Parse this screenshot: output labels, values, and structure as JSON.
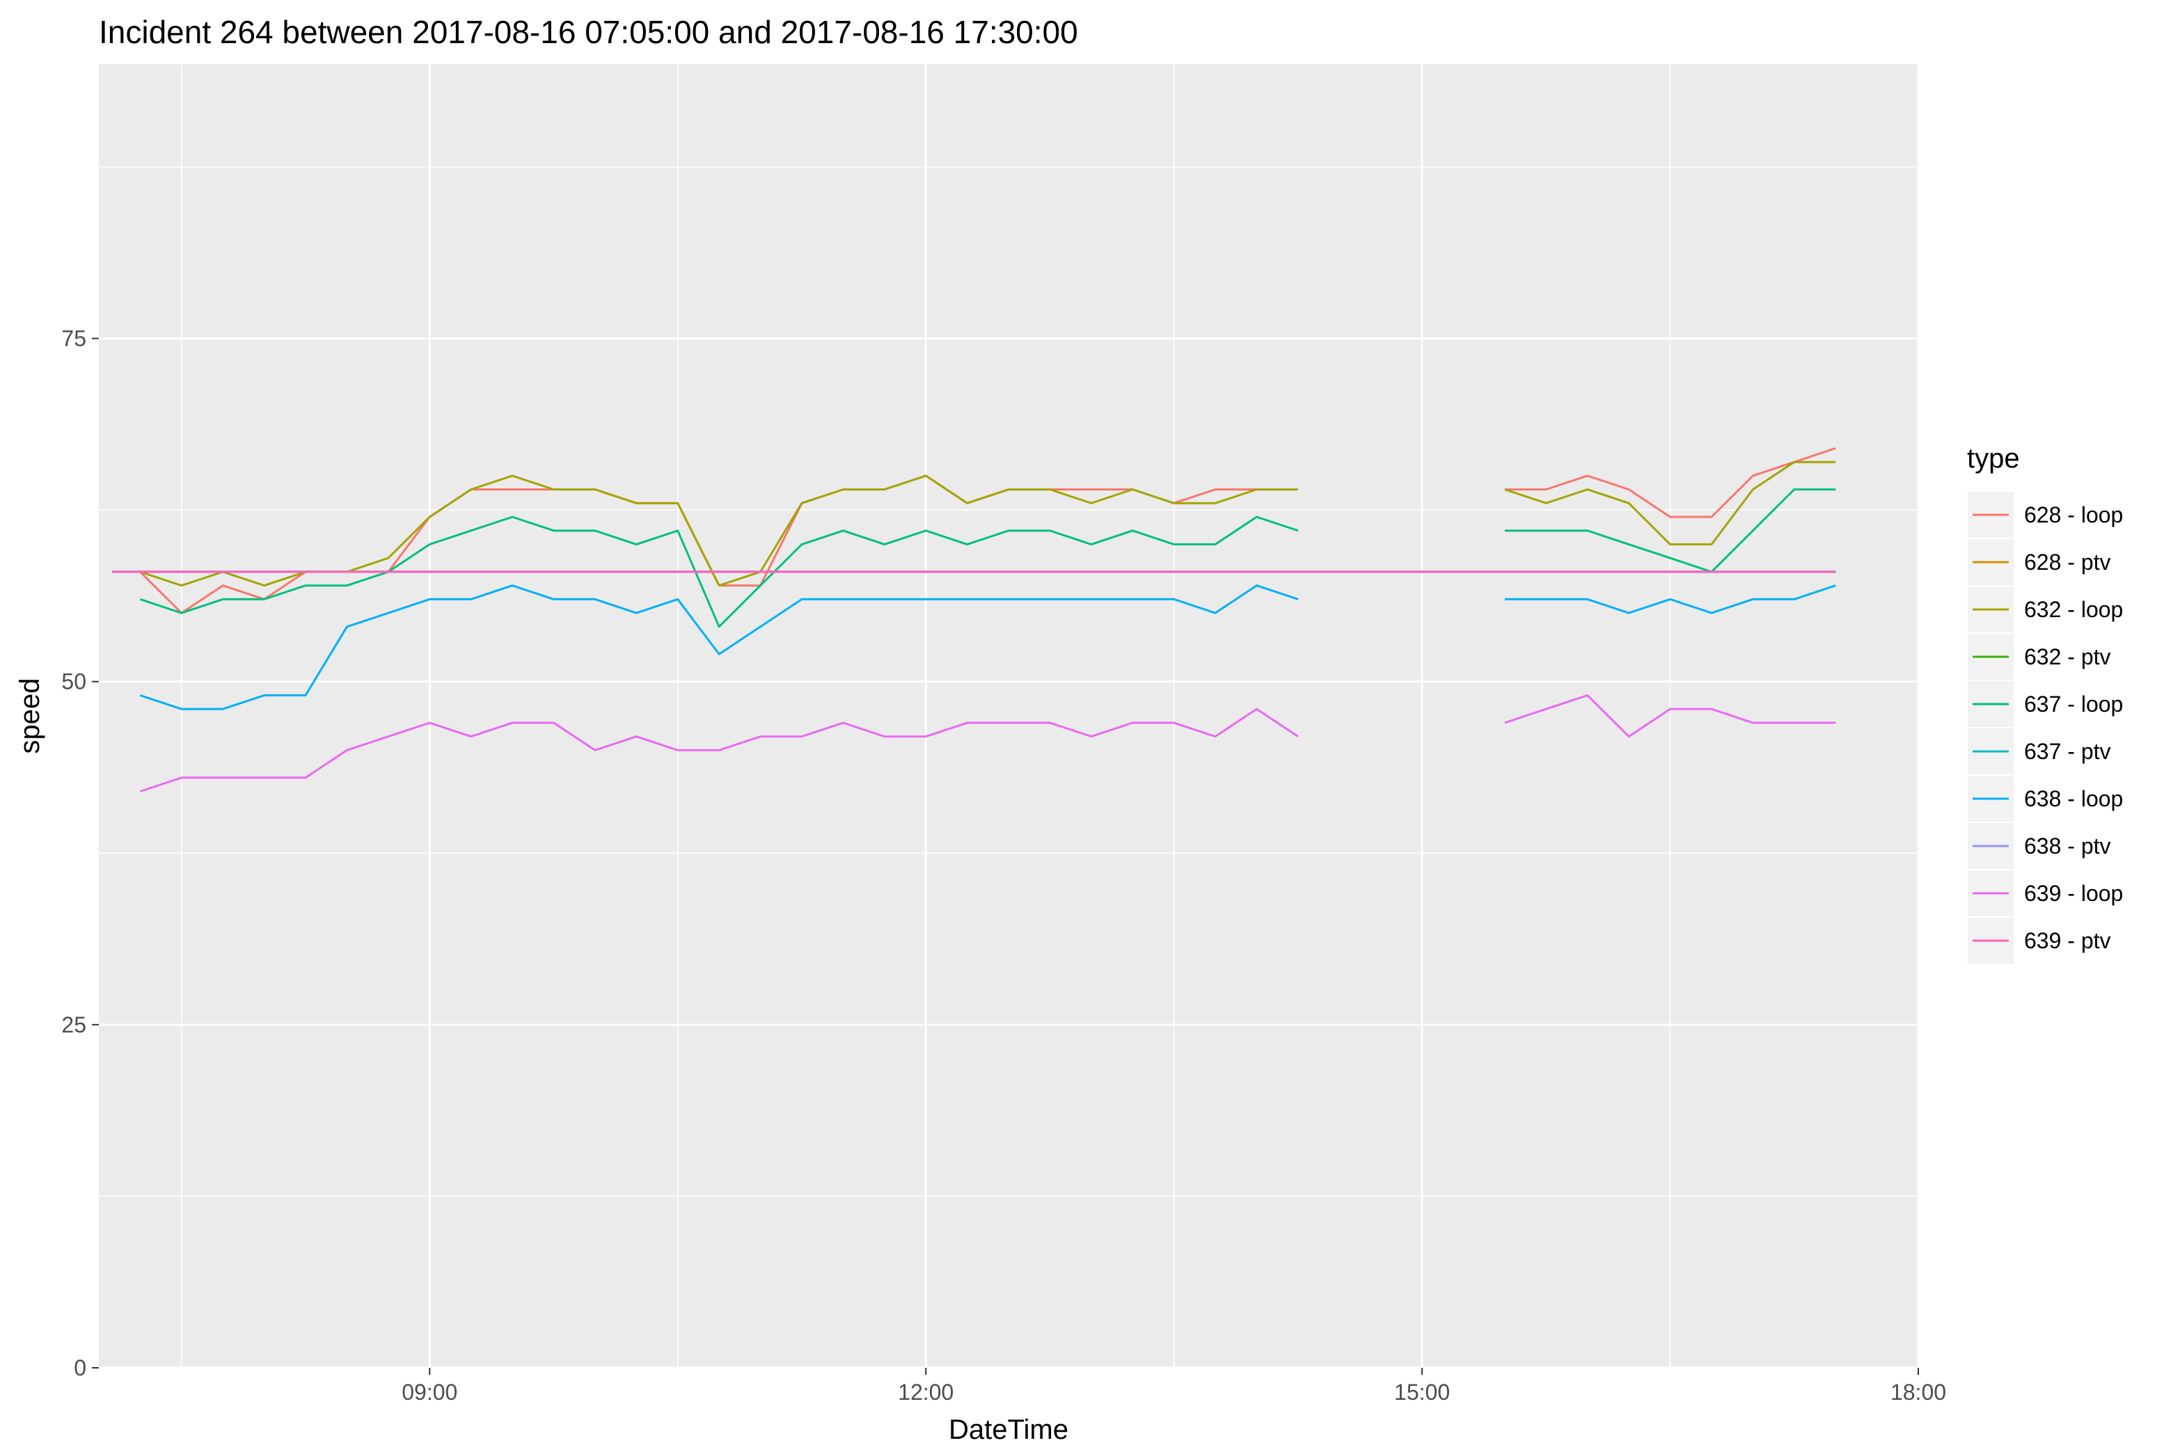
{
  "chart_data": {
    "type": "line",
    "title": "Incident 264 between 2017-08-16 07:05:00 and 2017-08-16 17:30:00",
    "xlabel": "DateTime",
    "ylabel": "speed",
    "x_unit": "hours of day",
    "xlim": [
      7.0,
      18.0
    ],
    "ylim": [
      0,
      95
    ],
    "x_ticks": [
      9,
      12,
      15,
      18
    ],
    "x_tick_labels": [
      "09:00",
      "12:00",
      "15:00",
      "18:00"
    ],
    "y_ticks": [
      0,
      25,
      50,
      75
    ],
    "y_tick_labels": [
      "0",
      "25",
      "50",
      "75"
    ],
    "grid": true,
    "legend": {
      "title": "type",
      "placement": "right"
    },
    "series": [
      {
        "name": "628 - loop",
        "color": "#F8766D",
        "x": [
          7.25,
          7.5,
          7.75,
          8.0,
          8.25,
          8.5,
          8.75,
          9.0,
          9.25,
          9.5,
          9.75,
          10.0,
          10.25,
          10.5,
          10.75,
          11.0,
          11.25,
          11.5,
          11.75,
          12.0,
          12.25,
          12.5,
          12.75,
          13.0,
          13.25,
          13.5,
          13.75,
          14.0,
          14.25,
          null,
          15.5,
          15.75,
          16.0,
          16.25,
          16.5,
          16.75,
          17.0,
          17.25,
          17.5
        ],
        "y": [
          58,
          55,
          57,
          56,
          58,
          58,
          58,
          62,
          64,
          64,
          64,
          64,
          63,
          63,
          57,
          57,
          63,
          64,
          64,
          65,
          63,
          64,
          64,
          64,
          64,
          63,
          64,
          64,
          64,
          null,
          64,
          64,
          65,
          64,
          62,
          62,
          65,
          66,
          67
        ]
      },
      {
        "name": "628 - ptv",
        "color": "#D89000",
        "x": [
          7.08,
          17.5
        ],
        "y": [
          58,
          58
        ]
      },
      {
        "name": "632 - loop",
        "color": "#A3A500",
        "x": [
          7.25,
          7.5,
          7.75,
          8.0,
          8.25,
          8.5,
          8.75,
          9.0,
          9.25,
          9.5,
          9.75,
          10.0,
          10.25,
          10.5,
          10.75,
          11.0,
          11.25,
          11.5,
          11.75,
          12.0,
          12.25,
          12.5,
          12.75,
          13.0,
          13.25,
          13.5,
          13.75,
          14.0,
          14.25,
          null,
          15.5,
          15.75,
          16.0,
          16.25,
          16.5,
          16.75,
          17.0,
          17.25,
          17.5
        ],
        "y": [
          58,
          57,
          58,
          57,
          58,
          58,
          59,
          62,
          64,
          65,
          64,
          64,
          63,
          63,
          57,
          58,
          63,
          64,
          64,
          65,
          63,
          64,
          64,
          63,
          64,
          63,
          63,
          64,
          64,
          null,
          64,
          63,
          64,
          63,
          60,
          60,
          64,
          66,
          66
        ]
      },
      {
        "name": "632 - ptv",
        "color": "#39B600",
        "x": [
          7.08,
          17.5
        ],
        "y": [
          58,
          58
        ]
      },
      {
        "name": "637 - loop",
        "color": "#00BF7D",
        "x": [
          7.25,
          7.5,
          7.75,
          8.0,
          8.25,
          8.5,
          8.75,
          9.0,
          9.25,
          9.5,
          9.75,
          10.0,
          10.25,
          10.5,
          10.75,
          11.0,
          11.25,
          11.5,
          11.75,
          12.0,
          12.25,
          12.5,
          12.75,
          13.0,
          13.25,
          13.5,
          13.75,
          14.0,
          14.25,
          null,
          15.5,
          15.75,
          16.0,
          16.25,
          16.5,
          16.75,
          17.0,
          17.25,
          17.5
        ],
        "y": [
          56,
          55,
          56,
          56,
          57,
          57,
          58,
          60,
          61,
          62,
          61,
          61,
          60,
          61,
          54,
          57,
          60,
          61,
          60,
          61,
          60,
          61,
          61,
          60,
          61,
          60,
          60,
          62,
          61,
          null,
          61,
          61,
          61,
          60,
          59,
          58,
          61,
          64,
          64
        ]
      },
      {
        "name": "637 - ptv",
        "color": "#00BFC4",
        "x": [
          7.08,
          17.5
        ],
        "y": [
          58,
          58
        ]
      },
      {
        "name": "638 - loop",
        "color": "#00B0F6",
        "x": [
          7.25,
          7.5,
          7.75,
          8.0,
          8.25,
          8.5,
          8.75,
          9.0,
          9.25,
          9.5,
          9.75,
          10.0,
          10.25,
          10.5,
          10.75,
          11.0,
          11.25,
          11.5,
          11.75,
          12.0,
          12.25,
          12.5,
          12.75,
          13.0,
          13.25,
          13.5,
          13.75,
          14.0,
          14.25,
          null,
          15.5,
          15.75,
          16.0,
          16.25,
          16.5,
          16.75,
          17.0,
          17.25,
          17.5
        ],
        "y": [
          49,
          48,
          48,
          49,
          49,
          54,
          55,
          56,
          56,
          57,
          56,
          56,
          55,
          56,
          52,
          54,
          56,
          56,
          56,
          56,
          56,
          56,
          56,
          56,
          56,
          56,
          55,
          57,
          56,
          null,
          56,
          56,
          56,
          55,
          56,
          55,
          56,
          56,
          57
        ]
      },
      {
        "name": "638 - ptv",
        "color": "#9590FF",
        "x": [
          7.08,
          17.5
        ],
        "y": [
          58,
          58
        ]
      },
      {
        "name": "639 - loop",
        "color": "#E76BF3",
        "x": [
          7.25,
          7.5,
          7.75,
          8.0,
          8.25,
          8.5,
          8.75,
          9.0,
          9.25,
          9.5,
          9.75,
          10.0,
          10.25,
          10.5,
          10.75,
          11.0,
          11.25,
          11.5,
          11.75,
          12.0,
          12.25,
          12.5,
          12.75,
          13.0,
          13.25,
          13.5,
          13.75,
          14.0,
          14.25,
          null,
          15.5,
          15.75,
          16.0,
          16.25,
          16.5,
          16.75,
          17.0,
          17.25,
          17.5
        ],
        "y": [
          42,
          43,
          43,
          43,
          43,
          45,
          46,
          47,
          46,
          47,
          47,
          45,
          46,
          45,
          45,
          46,
          46,
          47,
          46,
          46,
          47,
          47,
          47,
          46,
          47,
          47,
          46,
          48,
          46,
          null,
          47,
          48,
          49,
          46,
          48,
          48,
          47,
          47,
          47
        ]
      },
      {
        "name": "639 - ptv",
        "color": "#FF62BC",
        "x": [
          7.08,
          17.5
        ],
        "y": [
          58,
          58
        ]
      }
    ]
  }
}
